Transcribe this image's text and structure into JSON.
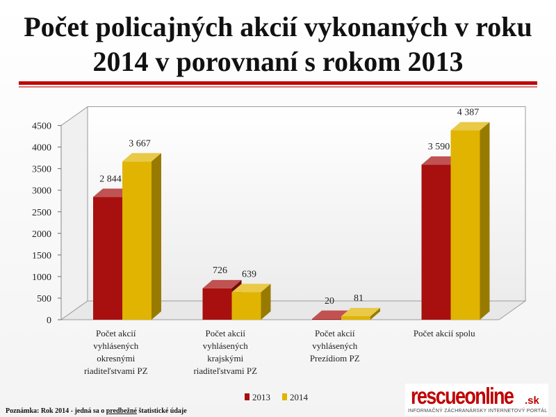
{
  "title_line1": "Počet policajných akcií vykonaných v roku",
  "title_line2": "2014 v porovnaní s rokom 2013",
  "note": {
    "prefix": "Poznámka: Rok 2014 - jedná sa o ",
    "emphasis": "predbežné",
    "suffix": " štatistické údaje"
  },
  "logo": {
    "word": "rescueonline",
    "tld": ".sk",
    "tagline": "INFORMAČNÝ ZÁCHRANÁRSKY INTERNETOVÝ PORTÁL"
  },
  "colors": {
    "2013": "#a80f0f",
    "2014": "#e0b400",
    "title_rule": "#c00000"
  },
  "chart_data": {
    "type": "bar",
    "title": "Počet policajných akcií vykonaných v roku 2014 v porovnaní s rokom 2013",
    "categories": [
      [
        "Počet akcií",
        "vyhlásených",
        "okresnými",
        "riaditeľstvami PZ"
      ],
      [
        "Počet akcií",
        "vyhlásených",
        "krajskými",
        "riaditeľstvami PZ"
      ],
      [
        "Počet akcií",
        "vyhlásených",
        "Prezídiom PZ"
      ],
      [
        "Počet akcií spolu"
      ]
    ],
    "series": [
      {
        "name": "2013",
        "values": [
          2844,
          726,
          20,
          3590
        ],
        "labels": [
          "2 844",
          "726",
          "20",
          "3 590"
        ],
        "color": "#a80f0f"
      },
      {
        "name": "2014",
        "values": [
          3667,
          639,
          81,
          4387
        ],
        "labels": [
          "3 667",
          "639",
          "81",
          "4 387"
        ],
        "color": "#e0b400"
      }
    ],
    "ylim": [
      0,
      4500
    ],
    "yticks": [
      0,
      500,
      1000,
      1500,
      2000,
      2500,
      3000,
      3500,
      4000,
      4500
    ],
    "grid": false,
    "legend": "bottom",
    "style": "3d"
  }
}
